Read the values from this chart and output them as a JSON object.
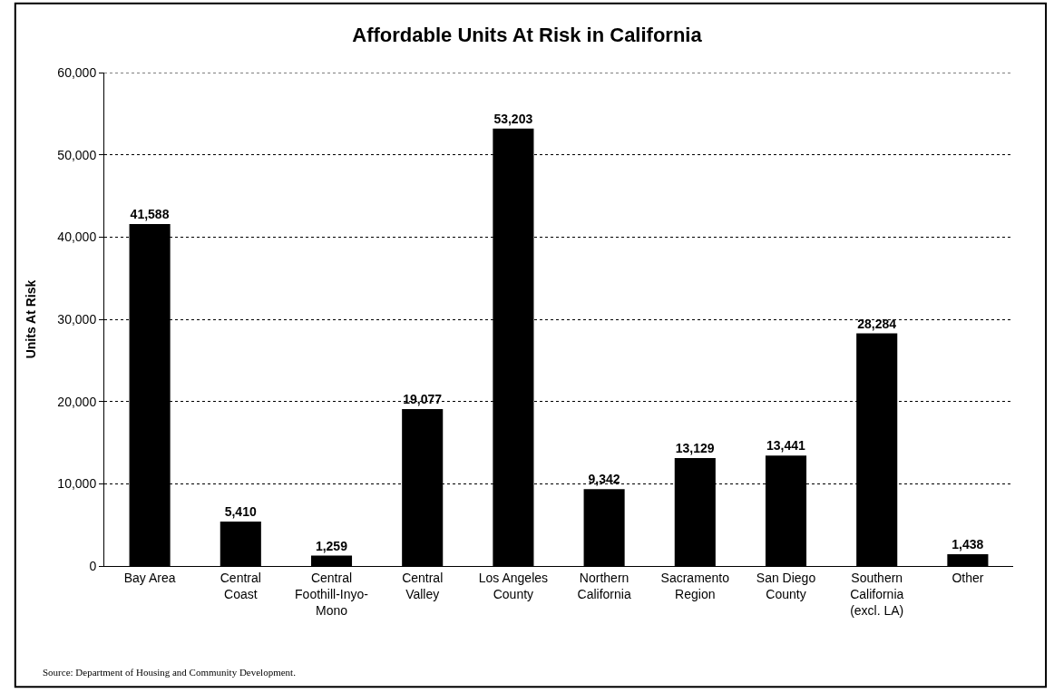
{
  "chart_data": {
    "type": "bar",
    "title": "Affordable Units At Risk in California",
    "ylabel": "Units At Risk",
    "categories": [
      "Bay Area",
      "Central\nCoast",
      "Central\nFoothill-Inyo-\nMono",
      "Central\nValley",
      "Los Angeles\nCounty",
      "Northern\nCalifornia",
      "Sacramento\nRegion",
      "San Diego\nCounty",
      "Southern\nCalifornia\n(excl. LA)",
      "Other"
    ],
    "values": [
      41588,
      5410,
      1259,
      19077,
      53203,
      9342,
      13129,
      13441,
      28284,
      1438
    ],
    "color": "#000000",
    "data_labels": true,
    "value_labels": [
      "41,588",
      "5,410",
      "1,259",
      "19,077",
      "53,203",
      "9,342",
      "13,129",
      "13,441",
      "28,284",
      "1,438"
    ],
    "ylim": [
      0,
      60000
    ],
    "yticks": [
      {
        "value": 0,
        "label": "0"
      },
      {
        "value": 10000,
        "label": "10,000"
      },
      {
        "value": 20000,
        "label": "20,000"
      },
      {
        "value": 30000,
        "label": "30,000"
      },
      {
        "value": 40000,
        "label": "40,000"
      },
      {
        "value": 50000,
        "label": "50,000"
      },
      {
        "value": 60000,
        "label": "60,000"
      }
    ],
    "grid": "y",
    "annotations": [
      "Source: Department of Housing and Community Development."
    ]
  }
}
